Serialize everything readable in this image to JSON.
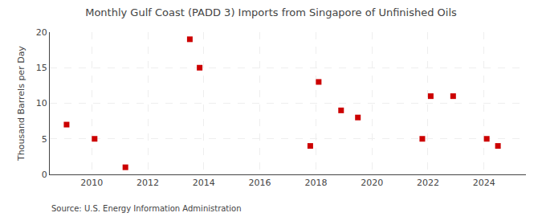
{
  "chart_data": {
    "type": "scatter",
    "title": "Monthly Gulf Coast (PADD 3) Imports from Singapore of Unfinished Oils",
    "ylabel": "Thousand Barrels per Day",
    "annotations": [
      "Source: U.S. Energy Information Administration"
    ],
    "x": [
      2009.1,
      2010.1,
      2011.2,
      2013.5,
      2013.85,
      2017.8,
      2018.1,
      2018.9,
      2019.5,
      2021.8,
      2022.1,
      2022.9,
      2024.1,
      2024.5
    ],
    "values": [
      7,
      5,
      1,
      19,
      15,
      4,
      13,
      9,
      8,
      5,
      11,
      11,
      5,
      4
    ],
    "color": "#cc0000",
    "marker": "square",
    "xlim": [
      2008.5,
      2025.5
    ],
    "xticks": [
      2010,
      2012,
      2014,
      2016,
      2018,
      2020,
      2022,
      2024
    ],
    "ylim": [
      0,
      20
    ],
    "yticks": [
      0,
      5,
      10,
      15,
      20
    ],
    "grid": true
  }
}
